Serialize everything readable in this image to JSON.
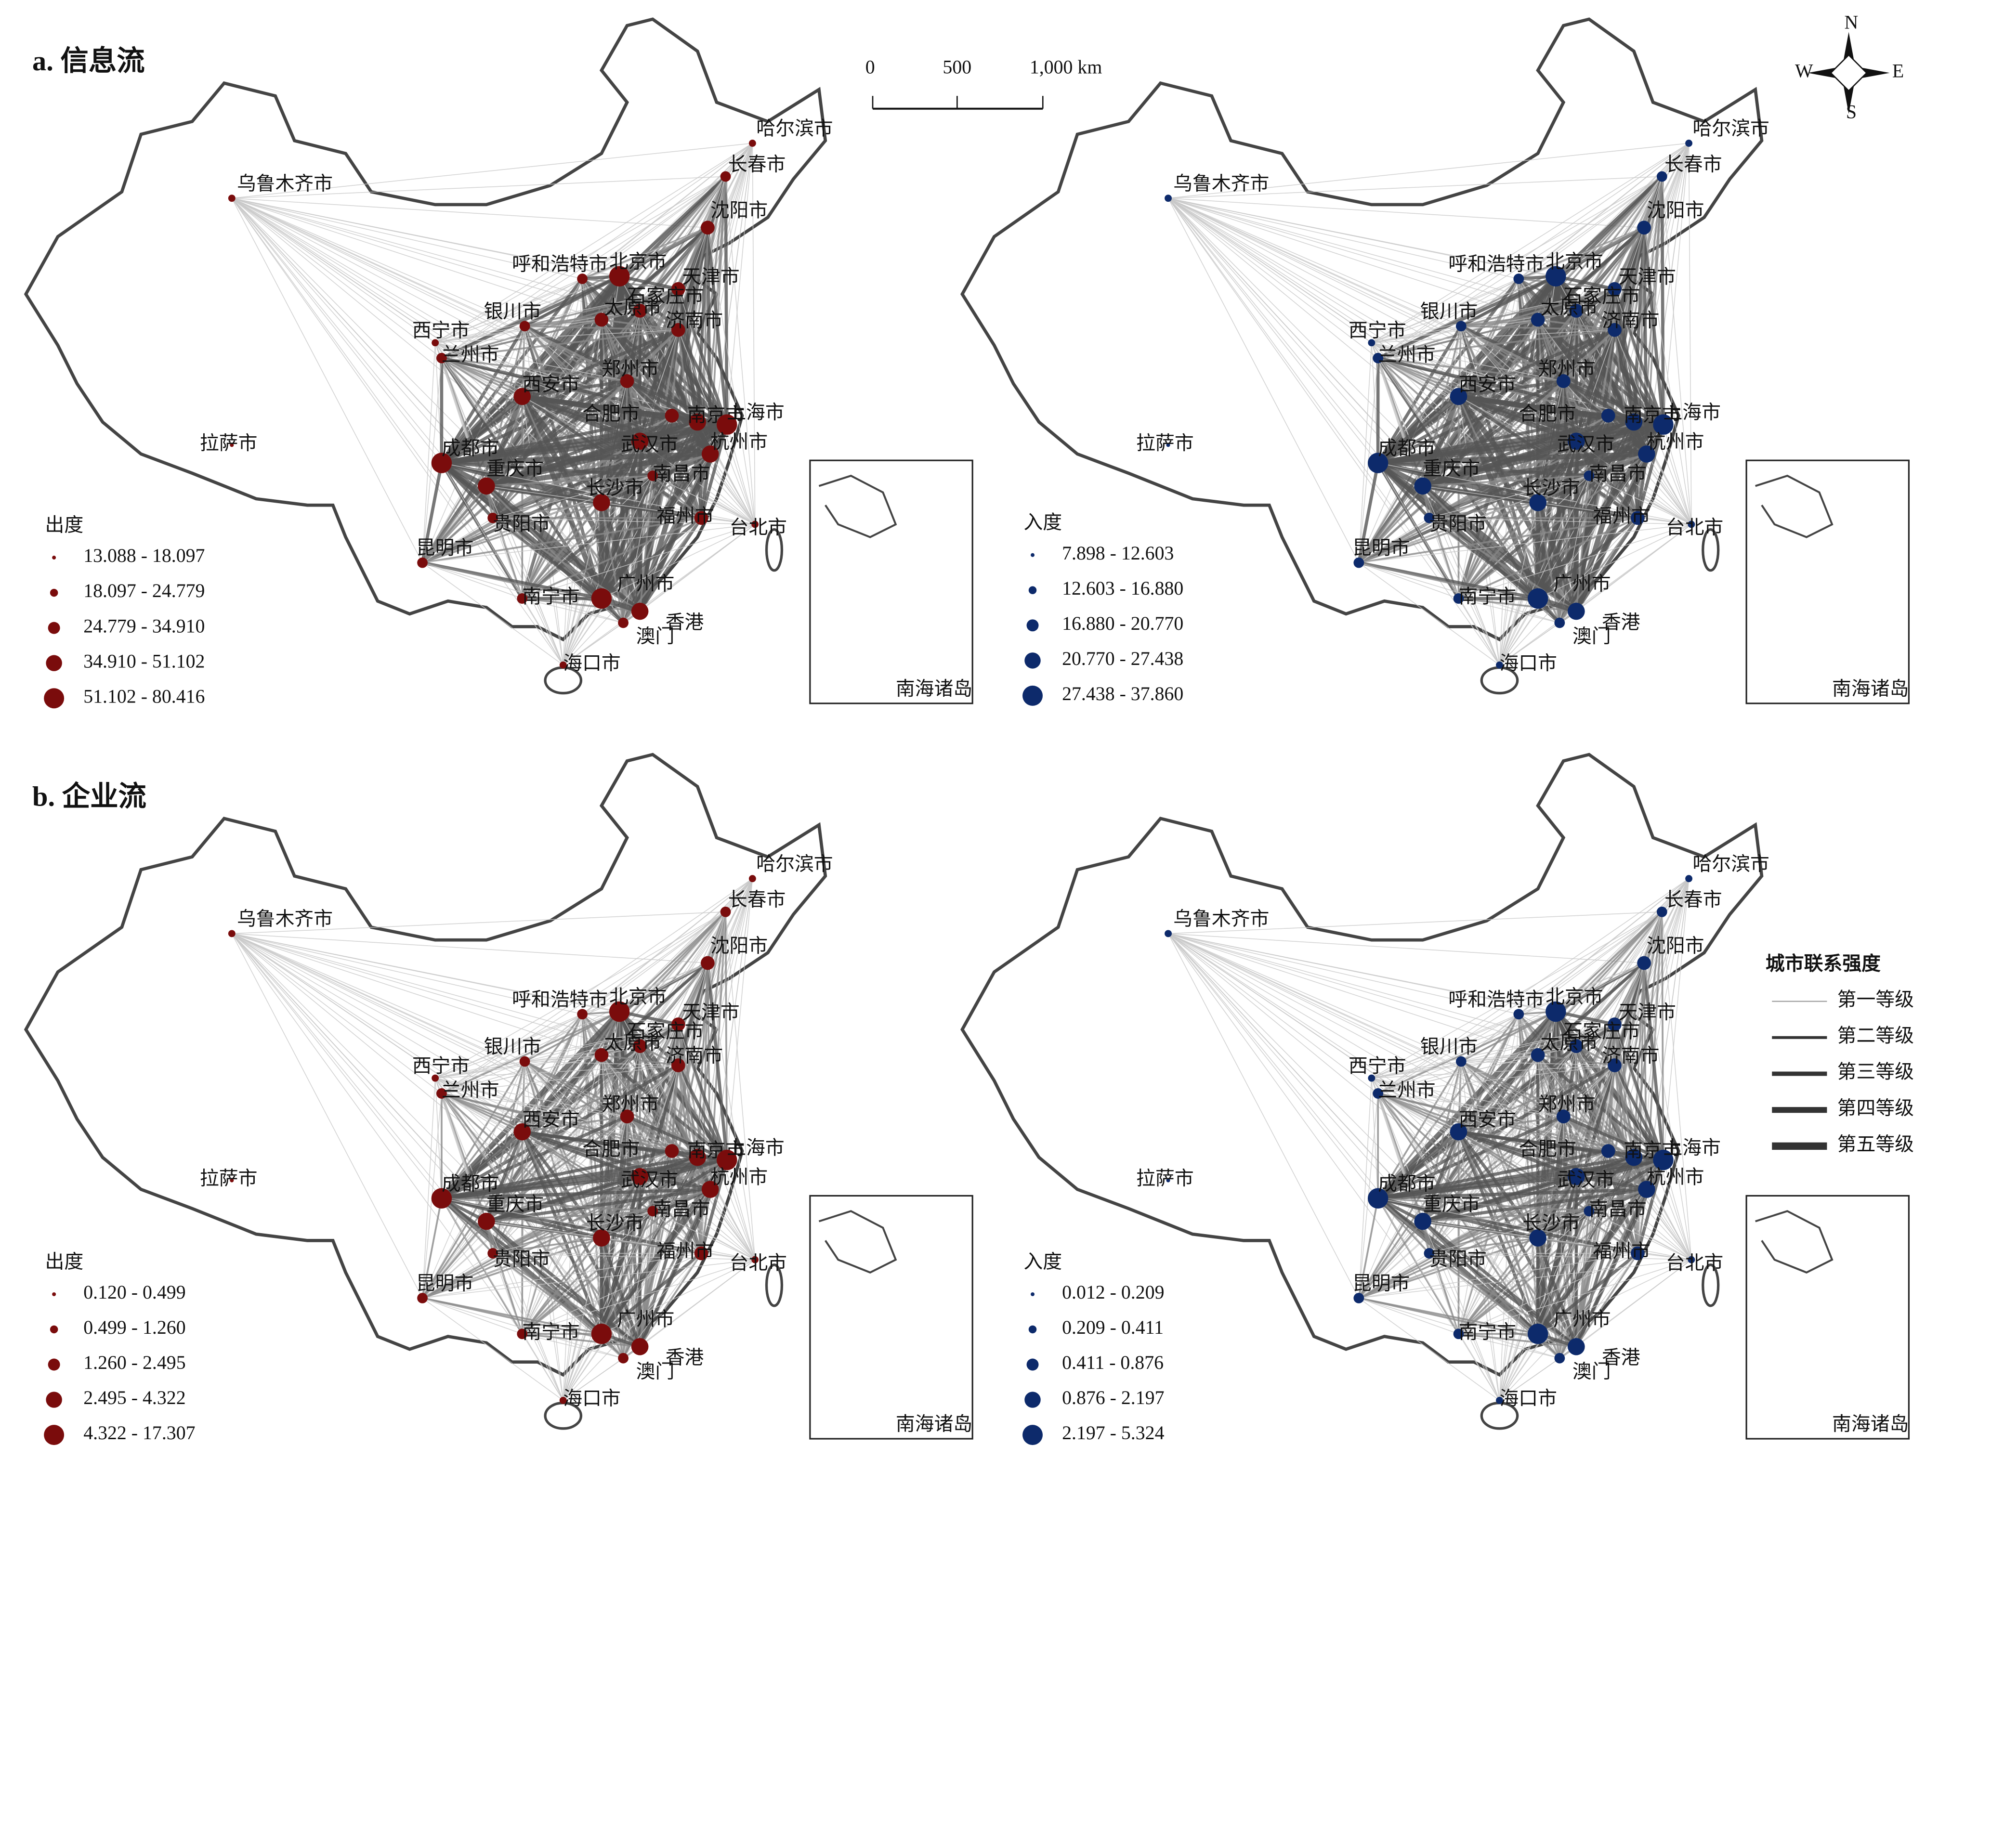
{
  "sections": [
    {
      "title": "a. 信息流"
    },
    {
      "title": "b. 企业流"
    }
  ],
  "scale_bar": {
    "labels": [
      "0",
      "500",
      "1,000 km"
    ]
  },
  "compass": {
    "n": "N",
    "s": "S",
    "e": "E",
    "w": "W"
  },
  "inset_label": "南海诸岛",
  "cities": [
    "乌鲁木齐市",
    "哈尔滨市",
    "长春市",
    "沈阳市",
    "呼和浩特市",
    "北京市",
    "天津市",
    "石家庄市",
    "太原市",
    "银川市",
    "济南市",
    "西宁市",
    "兰州市",
    "郑州市",
    "西安市",
    "合肥市",
    "南京市",
    "上海市",
    "武汉市",
    "杭州市",
    "成都市",
    "重庆市",
    "南昌市",
    "长沙市",
    "贵阳市",
    "福州市",
    "台北市",
    "昆明市",
    "南宁市",
    "广州市",
    "香港",
    "澳门",
    "海口市",
    "拉萨市"
  ],
  "maps": [
    {
      "legend_title": "出度",
      "legend_classes": [
        "13.088 - 18.097",
        "18.097 - 24.779",
        "24.779  - 34.910",
        "34.910 - 51.102",
        "51.102 - 80.416"
      ]
    },
    {
      "legend_title": "入度",
      "legend_classes": [
        "7.898 - 12.603",
        "12.603 - 16.880",
        "16.880 - 20.770",
        "20.770 - 27.438",
        "27.438 - 37.860"
      ]
    },
    {
      "legend_title": "出度",
      "legend_classes": [
        "0.120 - 0.499",
        "0.499 - 1.260",
        "1.260 - 2.495",
        "2.495 - 4.322",
        "4.322 - 17.307"
      ]
    },
    {
      "legend_title": "入度",
      "legend_classes": [
        "0.012 - 0.209",
        "0.209 - 0.411",
        "0.411 - 0.876",
        "0.876 - 2.197",
        "2.197 - 5.324"
      ]
    }
  ],
  "strength_legend": {
    "title": "城市联系强度",
    "levels": [
      "第一等级",
      "第二等级",
      "第三等级",
      "第四等级",
      "第五等级"
    ]
  }
}
